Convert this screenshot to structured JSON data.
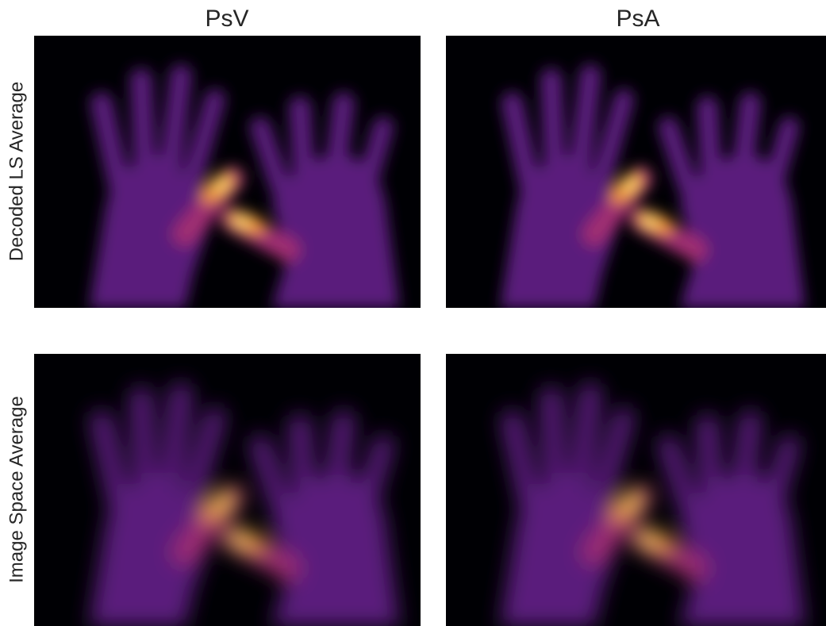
{
  "columns": [
    "PsV",
    "PsA"
  ],
  "rows": [
    "Decoded LS Average",
    "Image Space Average"
  ]
}
